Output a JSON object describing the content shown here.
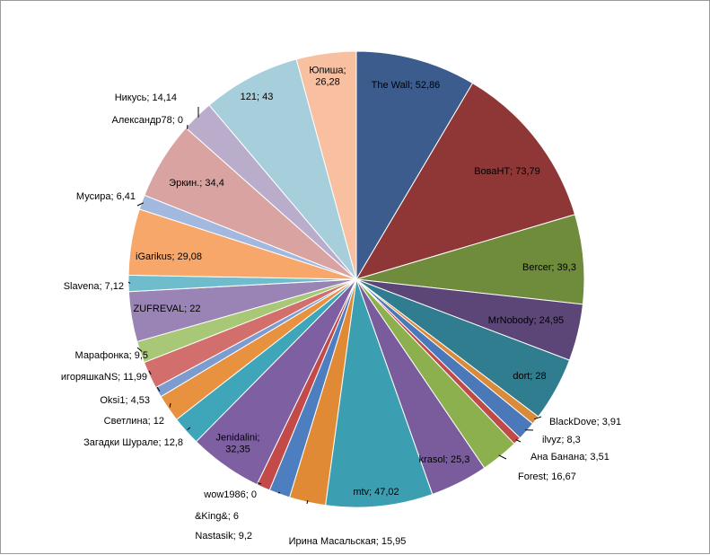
{
  "chart_data": {
    "type": "pie",
    "title": "",
    "legend": "none",
    "slices": [
      {
        "name": "The Wall",
        "value": 52.86,
        "label": "The Wall; 52,86",
        "color": "#3B5C8C"
      },
      {
        "name": "ВоваНТ",
        "value": 73.79,
        "label": "ВоваНТ; 73,79",
        "color": "#8F3636"
      },
      {
        "name": "Bercer",
        "value": 39.3,
        "label": "Bercer; 39,3",
        "color": "#6F8B3C"
      },
      {
        "name": "MrNobody",
        "value": 24.95,
        "label": "MrNobody; 24,95",
        "color": "#5B4677"
      },
      {
        "name": "dort",
        "value": 28,
        "label": "dort; 28",
        "color": "#2F7D8E"
      },
      {
        "name": "BlackDove",
        "value": 3.91,
        "label": "BlackDove; 3,91",
        "color": "#D98A3A"
      },
      {
        "name": "ilvyz",
        "value": 8.3,
        "label": "ilvyz; 8,3",
        "color": "#4A78B8"
      },
      {
        "name": "Ана Банана",
        "value": 3.51,
        "label": "Ана Банана; 3,51",
        "color": "#C04A48"
      },
      {
        "name": "Forest",
        "value": 16.67,
        "label": "Forest; 16,67",
        "color": "#8DB04E"
      },
      {
        "name": "krasol",
        "value": 25.3,
        "label": "krasol; 25,3",
        "color": "#7A5C9C"
      },
      {
        "name": "mtv",
        "value": 47.02,
        "label": "mtv; 47,02",
        "color": "#3C9FB1"
      },
      {
        "name": "Ирина Масальская",
        "value": 15.95,
        "label": "Ирина Масальская; 15,95",
        "color": "#E08A36"
      },
      {
        "name": "Nastasik",
        "value": 9.2,
        "label": "Nastasik; 9,2",
        "color": "#4C7EC0"
      },
      {
        "name": "&King&",
        "value": 6,
        "label": "&King&; 6",
        "color": "#C24B49"
      },
      {
        "name": "wow1986",
        "value": 0,
        "label": "wow1986; 0",
        "color": "#8FB255"
      },
      {
        "name": "Jenidalini",
        "value": 32.35,
        "label": "Jenidalini;\n32,35",
        "color": "#7E5FA2"
      },
      {
        "name": "Загадки Шурале",
        "value": 12.8,
        "label": "Загадки Шурале; 12,8",
        "color": "#3FA6BA"
      },
      {
        "name": "Светлина",
        "value": 12,
        "label": "Светлина; 12",
        "color": "#E8913E"
      },
      {
        "name": "Oksi1",
        "value": 4.53,
        "label": "Oksi1; 4,53",
        "color": "#7C9CD0"
      },
      {
        "name": "игоряшкаNS",
        "value": 11.99,
        "label": "игоряшкаNS; 11,99",
        "color": "#D26E6C"
      },
      {
        "name": "Марафонка",
        "value": 9.5,
        "label": "Марафонка; 9,5",
        "color": "#A8C878"
      },
      {
        "name": "ZUFREVAL",
        "value": 22,
        "label": "ZUFREVAL;  22",
        "color": "#9A83B5"
      },
      {
        "name": "Slavena",
        "value": 7.12,
        "label": "Slavena; 7,12",
        "color": "#6FBCCD"
      },
      {
        "name": "iGarikus",
        "value": 29.08,
        "label": "iGarikus; 29,08",
        "color": "#F7A76A"
      },
      {
        "name": "Мусира",
        "value": 6.41,
        "label": "Мусира; 6,41",
        "color": "#A3B8DE"
      },
      {
        "name": "Эркин.",
        "value": 34.4,
        "label": "Эркин.; 34,4",
        "color": "#D9A3A2"
      },
      {
        "name": "Александр78",
        "value": 0,
        "label": "Александр78; 0",
        "color": "#C6D9A2"
      },
      {
        "name": "Никусь",
        "value": 14.14,
        "label": "Никусь; 14,14",
        "color": "#B9ADCB"
      },
      {
        "name": "121",
        "value": 43,
        "label": "121; 43",
        "color": "#A6CEDB"
      },
      {
        "name": "Юпиша",
        "value": 26.28,
        "label": "Юпиша;\n26,28",
        "color": "#F8C0A0"
      }
    ]
  }
}
